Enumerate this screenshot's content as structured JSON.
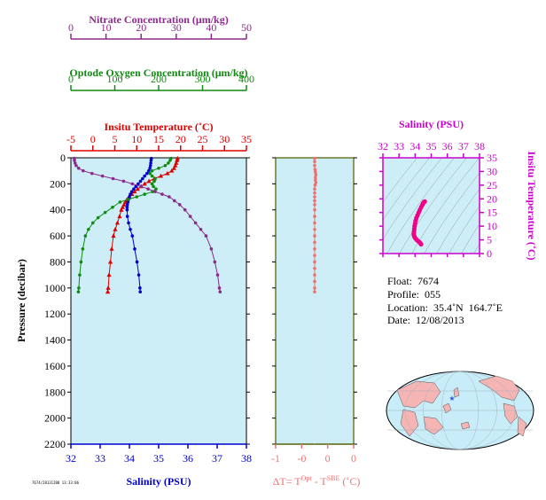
{
  "chart_data": [
    {
      "type": "line",
      "panel": "main-profile",
      "ylabel": "Pressure (decibar)",
      "ylim": [
        0,
        2200
      ],
      "y_ticks": [
        0,
        200,
        400,
        600,
        800,
        1000,
        1200,
        1400,
        1600,
        1800,
        2000,
        2200
      ],
      "axes": {
        "nitrate": {
          "label": "Nitrate Concentration (μm/kg)",
          "range": [
            0,
            50
          ],
          "ticks": [
            "0",
            "10",
            "20",
            "30",
            "40",
            "50"
          ],
          "color": "#8b2a8b"
        },
        "oxygen": {
          "label": "Optode Oxygen Concentration (μm/kg)",
          "range": [
            0,
            400
          ],
          "ticks": [
            "0",
            "100",
            "200",
            "300",
            "400"
          ],
          "color": "#118a11"
        },
        "temperature": {
          "label": "Insitu Temperature (˚C)",
          "range": [
            -5,
            35
          ],
          "ticks": [
            "-5",
            "0",
            "5",
            "10",
            "15",
            "20",
            "25",
            "30",
            "35"
          ],
          "color": "#dd0000"
        },
        "salinity": {
          "label": "Salinity (PSU)",
          "range": [
            32,
            38
          ],
          "ticks": [
            "32",
            "33",
            "34",
            "35",
            "36",
            "37",
            "38"
          ],
          "color": "#0000cc"
        }
      },
      "series": [
        {
          "name": "Insitu Temperature",
          "axis": "temperature",
          "color": "#dd0000",
          "marker": "triangle",
          "points": [
            [
              19.3,
              5
            ],
            [
              19.2,
              20
            ],
            [
              19.0,
              40
            ],
            [
              18.8,
              60
            ],
            [
              18.5,
              80
            ],
            [
              18.0,
              100
            ],
            [
              17.0,
              120
            ],
            [
              15.5,
              140
            ],
            [
              14.0,
              160
            ],
            [
              12.8,
              180
            ],
            [
              11.8,
              200
            ],
            [
              11.0,
              220
            ],
            [
              10.2,
              240
            ],
            [
              9.5,
              260
            ],
            [
              8.9,
              280
            ],
            [
              8.3,
              300
            ],
            [
              7.8,
              320
            ],
            [
              7.4,
              340
            ],
            [
              7.1,
              360
            ],
            [
              6.8,
              380
            ],
            [
              6.5,
              400
            ],
            [
              6.1,
              450
            ],
            [
              5.6,
              500
            ],
            [
              5.1,
              550
            ],
            [
              4.7,
              600
            ],
            [
              4.3,
              700
            ],
            [
              4.0,
              800
            ],
            [
              3.7,
              900
            ],
            [
              3.5,
              1000
            ],
            [
              3.4,
              1030
            ]
          ]
        },
        {
          "name": "Salinity",
          "axis": "salinity",
          "color": "#0000cc",
          "marker": "circle",
          "points": [
            [
              34.75,
              5
            ],
            [
              34.74,
              20
            ],
            [
              34.73,
              40
            ],
            [
              34.72,
              60
            ],
            [
              34.7,
              80
            ],
            [
              34.66,
              100
            ],
            [
              34.6,
              120
            ],
            [
              34.52,
              140
            ],
            [
              34.45,
              160
            ],
            [
              34.38,
              180
            ],
            [
              34.3,
              200
            ],
            [
              34.22,
              220
            ],
            [
              34.15,
              240
            ],
            [
              34.08,
              260
            ],
            [
              34.03,
              280
            ],
            [
              34.0,
              300
            ],
            [
              33.97,
              320
            ],
            [
              33.95,
              340
            ],
            [
              33.93,
              360
            ],
            [
              33.92,
              380
            ],
            [
              33.92,
              400
            ],
            [
              33.93,
              450
            ],
            [
              33.97,
              500
            ],
            [
              34.03,
              550
            ],
            [
              34.1,
              600
            ],
            [
              34.18,
              700
            ],
            [
              34.26,
              800
            ],
            [
              34.32,
              900
            ],
            [
              34.36,
              1000
            ],
            [
              34.37,
              1030
            ]
          ]
        },
        {
          "name": "Optode Oxygen Concentration",
          "axis": "oxygen",
          "color": "#118a11",
          "marker": "circle",
          "points": [
            [
              228,
              5
            ],
            [
              226,
              20
            ],
            [
              222,
              40
            ],
            [
              215,
              60
            ],
            [
              200,
              80
            ],
            [
              185,
              100
            ],
            [
              180,
              120
            ],
            [
              185,
              140
            ],
            [
              192,
              160
            ],
            [
              190,
              180
            ],
            [
              185,
              200
            ],
            [
              188,
              220
            ],
            [
              194,
              240
            ],
            [
              186,
              260
            ],
            [
              168,
              280
            ],
            [
              150,
              300
            ],
            [
              130,
              320
            ],
            [
              112,
              340
            ],
            [
              95,
              380
            ],
            [
              78,
              420
            ],
            [
              62,
              460
            ],
            [
              50,
              500
            ],
            [
              40,
              550
            ],
            [
              33,
              600
            ],
            [
              27,
              700
            ],
            [
              23,
              800
            ],
            [
              20,
              900
            ],
            [
              18,
              1000
            ],
            [
              17,
              1030
            ]
          ]
        },
        {
          "name": "Nitrate Concentration",
          "axis": "nitrate",
          "color": "#8b2a8b",
          "marker": "circle",
          "points": [
            [
              1.0,
              5
            ],
            [
              1.0,
              20
            ],
            [
              1.2,
              40
            ],
            [
              1.5,
              60
            ],
            [
              2.2,
              80
            ],
            [
              3.5,
              100
            ],
            [
              6.0,
              120
            ],
            [
              9.0,
              140
            ],
            [
              12.0,
              160
            ],
            [
              15.0,
              180
            ],
            [
              17.5,
              200
            ],
            [
              20.0,
              220
            ],
            [
              22.0,
              240
            ],
            [
              24.0,
              260
            ],
            [
              26.0,
              280
            ],
            [
              28.0,
              300
            ],
            [
              29.5,
              330
            ],
            [
              31.0,
              360
            ],
            [
              32.5,
              400
            ],
            [
              34.0,
              450
            ],
            [
              35.5,
              500
            ],
            [
              37.0,
              550
            ],
            [
              38.5,
              600
            ],
            [
              40.0,
              700
            ],
            [
              41.0,
              800
            ],
            [
              41.8,
              900
            ],
            [
              42.3,
              1000
            ],
            [
              42.5,
              1030
            ]
          ]
        }
      ]
    },
    {
      "type": "line",
      "panel": "delta-temperature",
      "xlabel": "ΔT= T^Opt - T^SBE (˚C)",
      "xlabel_parts": {
        "pre": "ΔT= T",
        "sup1": "Opt",
        "mid": " - T",
        "sup2": "SBE",
        "post": " (˚C)"
      },
      "x_ticks": [
        "-1",
        "-0",
        "0",
        "0"
      ],
      "xlim": [
        -1,
        1
      ],
      "color": "#f07070",
      "points": [
        [
          0.0,
          5
        ],
        [
          0.0,
          30
        ],
        [
          0.0,
          60
        ],
        [
          0.01,
          90
        ],
        [
          0.02,
          110
        ],
        [
          0.03,
          130
        ],
        [
          0.02,
          150
        ],
        [
          0.02,
          170
        ],
        [
          0.03,
          190
        ],
        [
          0.01,
          210
        ],
        [
          0.0,
          240
        ],
        [
          0.0,
          270
        ],
        [
          0.0,
          300
        ],
        [
          0.0,
          330
        ],
        [
          0.0,
          360
        ],
        [
          0.0,
          400
        ],
        [
          0.0,
          450
        ],
        [
          0.0,
          500
        ],
        [
          0.0,
          550
        ],
        [
          0.0,
          600
        ],
        [
          0.0,
          650
        ],
        [
          0.0,
          700
        ],
        [
          0.0,
          750
        ],
        [
          0.0,
          800
        ],
        [
          0.0,
          850
        ],
        [
          0.0,
          900
        ],
        [
          0.0,
          950
        ],
        [
          0.0,
          1000
        ],
        [
          0.0,
          1030
        ]
      ]
    },
    {
      "type": "scatter",
      "panel": "ts-diagram",
      "title": "Salinity (PSU)",
      "ylabel": "Insitu Temperature (˚C)",
      "xlim": [
        32,
        38
      ],
      "ylim": [
        0,
        35
      ],
      "x_ticks": [
        "32",
        "33",
        "34",
        "35",
        "36",
        "37",
        "38"
      ],
      "y_ticks": [
        "0",
        "5",
        "10",
        "15",
        "20",
        "25",
        "30",
        "35"
      ],
      "color": "#ee0088",
      "points": [
        [
          34.37,
          3.4
        ],
        [
          34.32,
          3.8
        ],
        [
          34.26,
          4.2
        ],
        [
          34.18,
          4.6
        ],
        [
          34.1,
          5.0
        ],
        [
          34.03,
          5.5
        ],
        [
          33.97,
          6.0
        ],
        [
          33.93,
          6.6
        ],
        [
          33.92,
          7.2
        ],
        [
          33.93,
          8.0
        ],
        [
          33.95,
          9.0
        ],
        [
          33.97,
          10.0
        ],
        [
          34.0,
          11.0
        ],
        [
          34.03,
          12.0
        ],
        [
          34.08,
          13.0
        ],
        [
          34.15,
          14.0
        ],
        [
          34.22,
          15.0
        ],
        [
          34.3,
          16.0
        ],
        [
          34.38,
          17.0
        ],
        [
          34.45,
          17.8
        ],
        [
          34.5,
          18.4
        ],
        [
          34.55,
          18.8
        ],
        [
          34.6,
          19.0
        ]
      ]
    }
  ],
  "info": {
    "float": "Float:  7674",
    "profile": "Profile:  055",
    "location": "Location:  35.4˚N  164.7˚E",
    "date": "Date:  12/08/2013"
  },
  "map": {
    "marker_symbol": "★",
    "marker_color": "#3355dd",
    "land_color": "#f5b5b5",
    "ocean_color": "#c8ecf8"
  },
  "stamp": "7674/20131208 13:33:06",
  "colors": {
    "panel_bg": "#cdeef7"
  }
}
